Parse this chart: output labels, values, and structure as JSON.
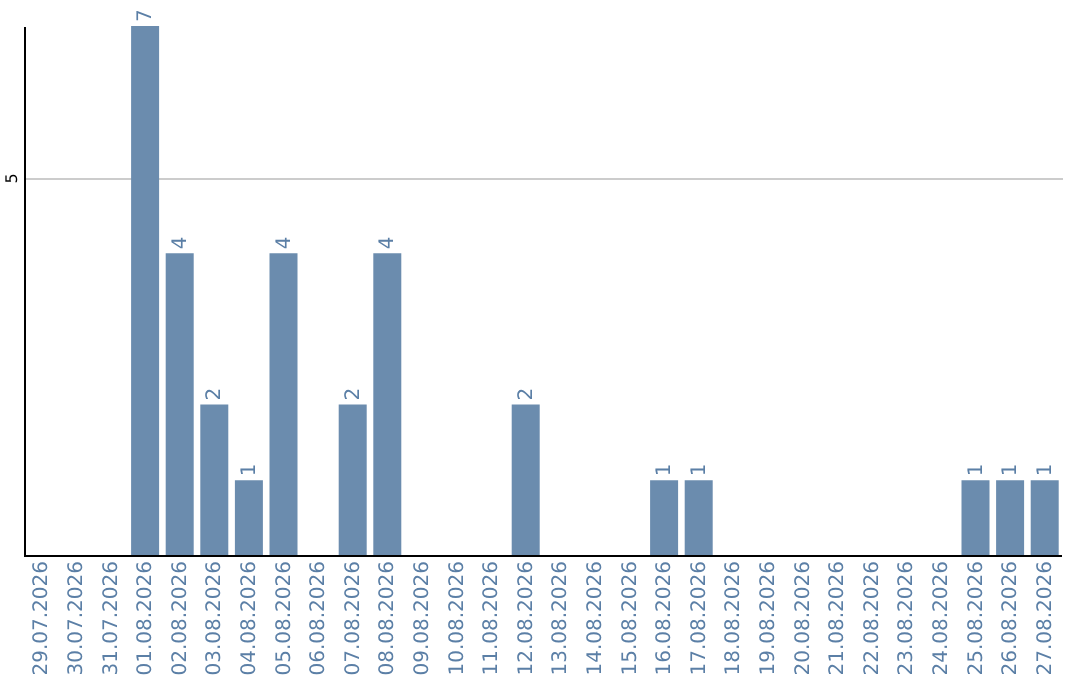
{
  "chart_data": {
    "type": "bar",
    "categories": [
      "29.07.2026",
      "30.07.2026",
      "31.07.2026",
      "01.08.2026",
      "02.08.2026",
      "03.08.2026",
      "04.08.2026",
      "05.08.2026",
      "06.08.2026",
      "07.08.2026",
      "08.08.2026",
      "09.08.2026",
      "10.08.2026",
      "11.08.2026",
      "12.08.2026",
      "13.08.2026",
      "14.08.2026",
      "15.08.2026",
      "16.08.2026",
      "17.08.2026",
      "18.08.2026",
      "19.08.2026",
      "20.08.2026",
      "21.08.2026",
      "22.08.2026",
      "23.08.2026",
      "24.08.2026",
      "25.08.2026",
      "26.08.2026",
      "27.08.2026"
    ],
    "values": [
      0,
      0,
      0,
      7,
      4,
      2,
      1,
      4,
      0,
      2,
      4,
      0,
      0,
      0,
      2,
      0,
      0,
      0,
      1,
      1,
      0,
      0,
      0,
      0,
      0,
      0,
      0,
      1,
      1,
      1
    ],
    "value_labels": [
      null,
      null,
      null,
      "7",
      "4",
      "2",
      "1",
      "4",
      null,
      "2",
      "4",
      null,
      null,
      null,
      "2",
      null,
      null,
      null,
      "1",
      "1",
      null,
      null,
      null,
      null,
      null,
      null,
      null,
      "1",
      "1",
      "1"
    ],
    "color": "#6b8cae",
    "ylim": [
      0,
      7
    ],
    "yticks": [
      5
    ],
    "grid": "y"
  }
}
